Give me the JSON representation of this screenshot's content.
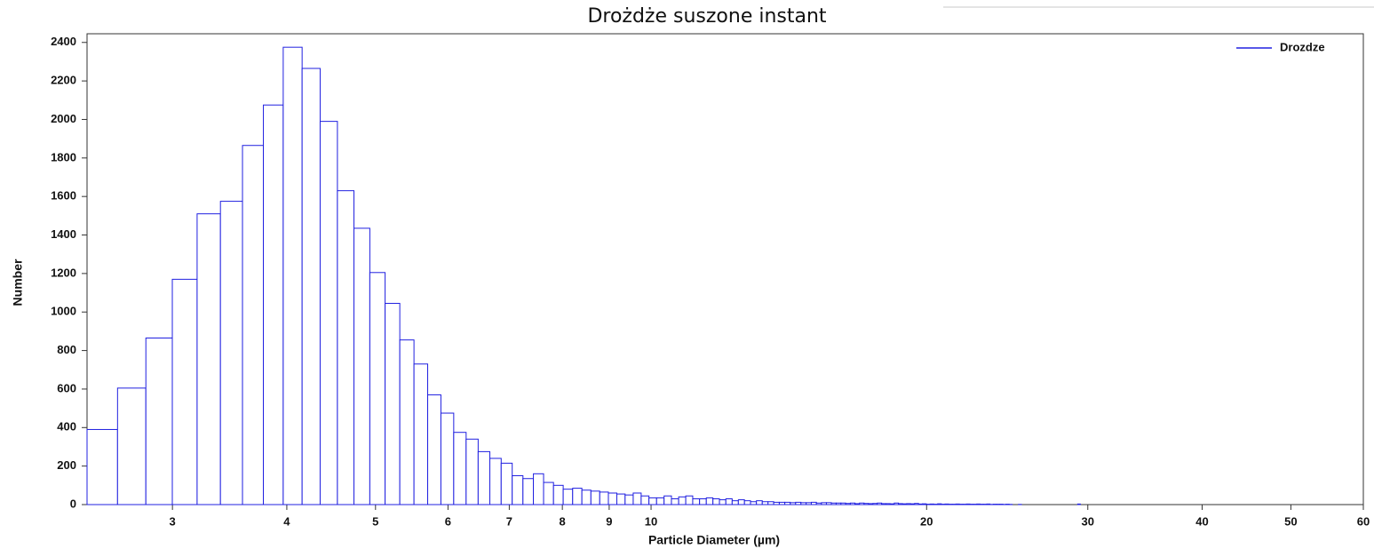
{
  "chart_data": {
    "type": "histogram",
    "title": "Drożdże suszone instant",
    "x_label": "Particle Diameter (µm)",
    "y_label": "Number",
    "x_scale": "log",
    "legend": "upper right",
    "xlim": [
      2.42,
      60
    ],
    "ylim": [
      0,
      2445
    ],
    "xticks": [
      3,
      4,
      5,
      6,
      7,
      8,
      9,
      10,
      20,
      30,
      40,
      50,
      60
    ],
    "yticks": [
      0,
      200,
      400,
      600,
      800,
      1000,
      1200,
      1400,
      1600,
      1800,
      2000,
      2200,
      2400
    ],
    "bins": [
      2.42,
      2.613,
      2.806,
      2.999,
      3.192,
      3.385,
      3.578,
      3.771,
      3.964,
      4.157,
      4.35,
      4.543,
      4.736,
      4.929,
      5.122,
      5.315,
      5.508,
      5.701,
      5.894,
      6.087,
      6.28,
      6.473,
      6.666,
      6.859,
      7.052,
      7.245,
      7.438,
      7.631,
      7.824,
      8.017,
      8.21,
      8.403,
      8.596,
      8.789,
      8.982,
      9.175,
      9.368,
      9.561,
      9.754,
      9.947,
      10.14,
      10.333,
      10.526,
      10.719,
      10.912,
      11.105,
      11.298,
      11.491,
      11.684,
      11.877,
      12.07,
      12.263,
      12.456,
      12.649,
      12.842,
      13.035,
      13.228,
      13.421,
      13.614,
      13.807,
      14.0,
      14.193,
      14.386,
      14.579,
      14.772,
      14.965,
      15.158,
      15.351,
      15.544,
      15.737,
      15.93,
      16.123,
      16.316,
      16.509,
      16.702,
      16.895,
      17.088,
      17.281,
      17.474,
      17.667,
      17.86,
      18.053,
      18.246,
      18.439,
      18.632,
      18.825,
      19.018,
      19.211,
      19.404,
      19.597,
      19.79,
      19.983,
      20.176,
      20.369,
      20.562,
      20.755,
      20.948,
      21.141,
      21.334,
      21.527,
      21.72,
      21.913,
      22.106,
      22.299,
      22.492,
      22.685,
      22.878,
      23.071,
      23.264,
      23.457,
      23.65,
      23.843,
      24.036,
      24.229,
      24.422,
      24.615,
      24.808,
      25.001,
      25.194,
      25.387,
      25.58,
      25.773,
      25.966,
      26.159,
      26.352,
      26.545,
      26.738,
      26.931,
      27.124,
      27.317,
      27.51,
      27.703,
      27.896,
      28.089,
      28.282,
      28.475,
      28.668,
      28.861,
      29.054,
      29.247,
      29.44,
      29.633
    ],
    "series": [
      {
        "name": "Drozdze",
        "color": "#2020e0",
        "values": [
          390,
          605,
          865,
          1170,
          1510,
          1575,
          1865,
          2075,
          2375,
          2265,
          1990,
          1630,
          1435,
          1205,
          1045,
          855,
          730,
          570,
          475,
          375,
          340,
          275,
          240,
          215,
          150,
          135,
          160,
          115,
          100,
          80,
          85,
          75,
          70,
          65,
          60,
          55,
          50,
          60,
          45,
          35,
          35,
          45,
          30,
          40,
          45,
          30,
          30,
          35,
          30,
          25,
          30,
          20,
          25,
          20,
          15,
          20,
          15,
          15,
          12,
          12,
          12,
          10,
          12,
          10,
          10,
          12,
          8,
          10,
          10,
          8,
          8,
          8,
          6,
          8,
          5,
          8,
          6,
          5,
          6,
          8,
          5,
          5,
          4,
          8,
          5,
          4,
          5,
          4,
          6,
          3,
          4,
          2,
          3,
          2,
          4,
          2,
          3,
          2,
          2,
          3,
          2,
          2,
          3,
          2,
          2,
          3,
          2,
          2,
          3,
          1,
          2,
          2,
          2,
          1,
          2,
          1,
          0,
          0,
          1,
          0,
          0,
          0,
          0,
          0,
          0,
          0,
          0,
          0,
          0,
          0,
          0,
          0,
          0,
          0,
          0,
          0,
          0,
          0,
          0,
          3,
          0
        ]
      }
    ]
  }
}
